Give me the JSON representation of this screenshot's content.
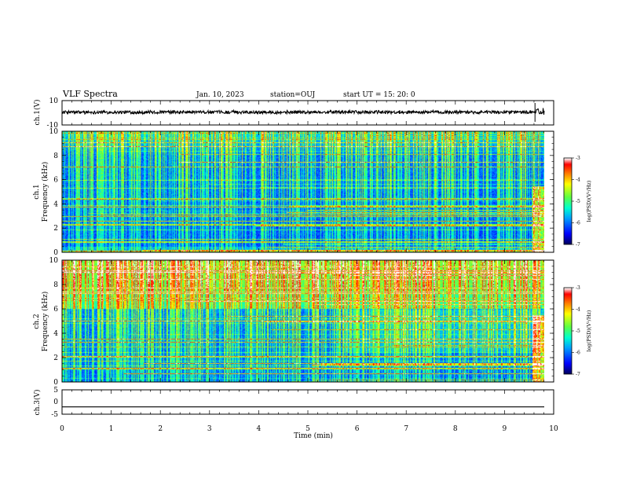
{
  "header": {
    "title": "VLF Spectra",
    "date": "Jan. 10, 2023",
    "station": "station=OUJ",
    "start": "start UT =  15: 20: 0"
  },
  "chart_data": [
    {
      "type": "line",
      "panel": "ch1-waveform",
      "ylabel": "ch.1(V)",
      "ylim": [
        -10,
        10
      ],
      "yticks": [
        "10",
        "-10"
      ],
      "xlim": [
        0,
        10
      ],
      "description_values": {
        "mean_level_v": 0.5,
        "noise_amplitude_v": 1.6
      }
    },
    {
      "type": "heatmap",
      "panel": "ch1-spectrogram",
      "ylabel": "Frequency (kHz)",
      "channel_label": "ch.1",
      "ylim": [
        0,
        10
      ],
      "yticks": [
        "0",
        "2",
        "4",
        "6",
        "8",
        "10"
      ],
      "xlim": [
        0,
        10
      ],
      "colorbar": {
        "label": "log(PSD)(V²/Hz)",
        "range": [
          -7,
          -3
        ],
        "ticks": [
          "-3",
          "-4",
          "-5",
          "-6",
          "-7"
        ]
      }
    },
    {
      "type": "heatmap",
      "panel": "ch2-spectrogram",
      "ylabel": "Frequency (kHz)",
      "channel_label": "ch.2",
      "ylim": [
        0,
        10
      ],
      "yticks": [
        "0",
        "2",
        "4",
        "6",
        "8",
        "10"
      ],
      "xlim": [
        0,
        10
      ],
      "colorbar": {
        "label": "log(PSD)(V²/Hz)",
        "range": [
          -7,
          -3
        ],
        "ticks": [
          "-3",
          "-4",
          "-5",
          "-6",
          "-7"
        ]
      }
    },
    {
      "type": "line",
      "panel": "ch3-waveform",
      "ylabel": "ch.3(V)",
      "ylim": [
        -5,
        5
      ],
      "yticks": [
        "5",
        "0",
        "-5"
      ],
      "xlim": [
        0,
        10
      ],
      "series": [
        {
          "values": [
            -2,
            -2
          ]
        }
      ]
    }
  ],
  "xaxis": {
    "label": "Time (min)",
    "ticks": [
      "0",
      "1",
      "2",
      "3",
      "4",
      "5",
      "6",
      "7",
      "8",
      "9",
      "10"
    ]
  },
  "colors": {
    "colormap": [
      "#000060",
      "#0000ff",
      "#00a0ff",
      "#00ffd0",
      "#60ff40",
      "#ffff00",
      "#ff8000",
      "#ff0000",
      "#ffffff"
    ]
  }
}
